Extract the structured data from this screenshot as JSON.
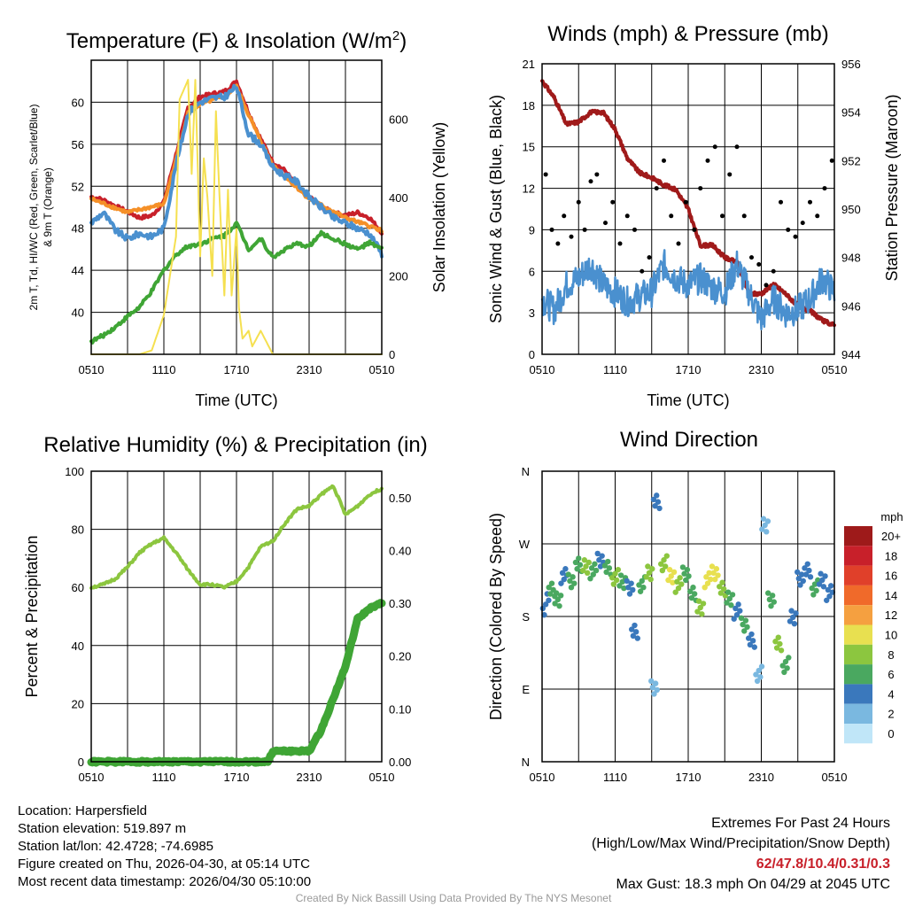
{
  "colors": {
    "red": "#c8202a",
    "orange": "#f59028",
    "green": "#3fa535",
    "blue": "#4a90cf",
    "yellow": "#f5e050",
    "black": "#000000",
    "maroon": "#a01a1a",
    "lightgreen": "#8cc63f"
  },
  "chart_data": [
    {
      "type": "line",
      "title": "Temperature (F) & Insolation (W/m²)",
      "xlabel": "Time (UTC)",
      "ylabel_lines": [
        "2m T, Td, HI/WC (Red, Green, Scarlet/Blue)",
        "& 9m T (Orange)"
      ],
      "ylabel2": "Solar Insolation (Yellow)",
      "x_ticks": [
        "0510",
        "1110",
        "1710",
        "2310",
        "0510"
      ],
      "y_ticks": [
        40,
        44,
        48,
        52,
        56,
        60
      ],
      "y2_ticks": [
        0,
        200,
        400,
        600
      ],
      "ylim": [
        36,
        64
      ],
      "y2lim": [
        0,
        750
      ],
      "xlim": [
        0,
        24
      ],
      "series": [
        {
          "name": "2m T",
          "color": "red",
          "x": [
            0,
            1,
            2,
            3,
            4,
            5,
            6,
            7,
            8,
            9,
            10,
            11,
            12,
            13,
            14,
            15,
            16,
            17,
            18,
            19,
            20,
            21,
            22,
            23,
            24
          ],
          "values": [
            51,
            50.7,
            50.1,
            49.6,
            49,
            49.2,
            50.5,
            55,
            59.5,
            60.5,
            60.8,
            61,
            62,
            59,
            56.5,
            54.3,
            53.5,
            52,
            51,
            50,
            49.5,
            49.2,
            49.5,
            49,
            47.6
          ]
        },
        {
          "name": "9m T",
          "color": "orange",
          "x": [
            0,
            3,
            6,
            7,
            8,
            9,
            10,
            11,
            12,
            13,
            14,
            15,
            18,
            21,
            24
          ],
          "values": [
            50.8,
            49.5,
            50.3,
            54.5,
            59,
            59.8,
            60.2,
            60.5,
            61.5,
            58.8,
            56.3,
            54,
            50.8,
            49,
            47.8
          ]
        },
        {
          "name": "HI/WC",
          "color": "blue",
          "x": [
            0,
            1,
            2,
            3,
            4,
            5,
            6,
            7,
            8,
            9,
            10,
            11,
            12,
            13,
            14,
            15,
            16,
            17,
            18,
            19,
            20,
            21,
            22,
            23,
            24
          ],
          "values": [
            48.5,
            49.5,
            47.8,
            47,
            47.5,
            47.2,
            48,
            54,
            59,
            60,
            60.4,
            60.5,
            61.5,
            57,
            56,
            53.8,
            53,
            52.4,
            51,
            50,
            49,
            48.5,
            48,
            47.5,
            45.6
          ]
        },
        {
          "name": "2m Td",
          "color": "green",
          "x": [
            0,
            1,
            2,
            3,
            4,
            5,
            6,
            7,
            8,
            9,
            10,
            11,
            12,
            13,
            14,
            15,
            16,
            17,
            18,
            19,
            20,
            21,
            22,
            23,
            24
          ],
          "values": [
            37.2,
            37.8,
            38.6,
            39.6,
            40.5,
            42,
            44,
            45.5,
            46.3,
            46.5,
            47,
            47.3,
            48.5,
            46,
            47,
            45.2,
            46,
            46.5,
            46.3,
            47.5,
            47,
            46.5,
            46,
            46.6,
            46
          ]
        },
        {
          "name": "Solar Insolation",
          "color": "yellow",
          "axis": "y2",
          "x": [
            0,
            4,
            5,
            6,
            7,
            7.3,
            8,
            8.3,
            8.6,
            9,
            9.3,
            9.6,
            10,
            10.3,
            10.6,
            11,
            11.3,
            11.6,
            12,
            12.2,
            12.5,
            13,
            13.3,
            14,
            15,
            24
          ],
          "values": [
            0,
            0,
            10,
            100,
            300,
            650,
            700,
            460,
            700,
            250,
            500,
            400,
            200,
            620,
            400,
            150,
            420,
            150,
            320,
            120,
            40,
            60,
            20,
            60,
            0,
            0
          ]
        }
      ]
    },
    {
      "type": "line",
      "title": "Winds (mph) & Pressure (mb)",
      "xlabel": "Time (UTC)",
      "ylabel": "Sonic Wind & Gust (Blue, Black)",
      "ylabel2": "Station Pressure (Maroon)",
      "x_ticks": [
        "0510",
        "1110",
        "1710",
        "2310",
        "0510"
      ],
      "y_ticks": [
        0,
        3,
        6,
        9,
        12,
        15,
        18,
        21
      ],
      "y2_ticks": [
        944,
        946,
        948,
        950,
        952,
        954,
        956
      ],
      "ylim": [
        0,
        21
      ],
      "y2lim": [
        944,
        956
      ],
      "xlim": [
        0,
        24
      ],
      "series": [
        {
          "name": "Station Pressure",
          "color": "maroon",
          "axis": "y2",
          "x": [
            0,
            1,
            2,
            3,
            4,
            5,
            6,
            7,
            8,
            9,
            10,
            11,
            12,
            13,
            14,
            15,
            16,
            17,
            18,
            19,
            20,
            21,
            22,
            23,
            24
          ],
          "values": [
            955.3,
            954.6,
            953.5,
            953.6,
            954,
            954,
            953.3,
            952.1,
            951.5,
            951.3,
            951,
            950.8,
            950,
            948.5,
            948.5,
            948,
            947.8,
            946.5,
            946.5,
            946.9,
            946.5,
            946,
            945.8,
            945.4,
            945.2
          ]
        },
        {
          "name": "Sonic Wind",
          "color": "blue",
          "x": [
            0,
            1,
            2,
            3,
            4,
            5,
            6,
            7,
            8,
            9,
            10,
            11,
            12,
            13,
            14,
            15,
            16,
            17,
            18,
            19,
            20,
            21,
            22,
            23,
            24
          ],
          "values": [
            4,
            3.2,
            5,
            5.5,
            6.5,
            5,
            4.5,
            3.8,
            4.2,
            4.5,
            6.5,
            5.5,
            5,
            5.5,
            4.8,
            4.5,
            6.5,
            4.5,
            2.5,
            4,
            3,
            3.2,
            4,
            5.5,
            4.5
          ]
        },
        {
          "name": "Gust",
          "color": "black",
          "type": "scatter",
          "x": [
            0.3,
            0.8,
            1.3,
            1.8,
            2.4,
            3,
            3.5,
            4,
            4.5,
            5.2,
            5.8,
            6.4,
            7,
            7.6,
            8.2,
            8.8,
            9.4,
            10,
            10.6,
            11.2,
            11.8,
            12.5,
            13,
            13.6,
            14.2,
            14.8,
            15.4,
            16,
            16.6,
            17.2,
            17.8,
            18.4,
            19,
            19.6,
            20.2,
            20.8,
            21.4,
            22,
            22.6,
            23.2,
            23.8
          ],
          "values": [
            13,
            9,
            8,
            10,
            8.5,
            11,
            9,
            12.5,
            13,
            9.5,
            11,
            8,
            10,
            9,
            6,
            7,
            12,
            14,
            10,
            8,
            11,
            9,
            12,
            14,
            15,
            10,
            13,
            15,
            10,
            7,
            6.5,
            5,
            6,
            11,
            9,
            8.5,
            9.5,
            11,
            10,
            12,
            14
          ]
        }
      ]
    },
    {
      "type": "line",
      "title": "Relative Humidity (%) & Precipitation (in)",
      "ylabel": "Percent & Precipitation",
      "x_ticks": [
        "0510",
        "1110",
        "1710",
        "2310",
        "0510"
      ],
      "y_ticks": [
        0,
        20,
        40,
        60,
        80,
        100
      ],
      "y2_ticks": [
        "0.00",
        "0.10",
        "0.20",
        "0.30",
        "0.40",
        "0.50"
      ],
      "ylim": [
        0,
        100
      ],
      "y2lim": [
        0,
        0.55
      ],
      "xlim": [
        0,
        24
      ],
      "series": [
        {
          "name": "Relative Humidity",
          "color": "lightgreen",
          "x": [
            0,
            1,
            2,
            3,
            4,
            5,
            6,
            7,
            8,
            9,
            10,
            11,
            12,
            13,
            14,
            15,
            16,
            17,
            18,
            19,
            20,
            21,
            22,
            23,
            24
          ],
          "values": [
            60,
            61,
            63,
            67,
            72,
            75,
            77,
            72,
            66,
            61,
            61,
            60,
            62,
            67,
            74,
            76,
            82,
            87,
            88,
            92,
            95,
            85,
            88,
            92,
            94
          ]
        },
        {
          "name": "Precipitation",
          "color": "green",
          "axis": "y2",
          "x": [
            0,
            14.6,
            15,
            17,
            18,
            19,
            20,
            21,
            22,
            23,
            24
          ],
          "values": [
            0,
            0,
            0.02,
            0.02,
            0.02,
            0.06,
            0.12,
            0.18,
            0.27,
            0.29,
            0.3
          ]
        }
      ]
    },
    {
      "type": "scatter",
      "title": "Wind Direction",
      "ylabel": "Direction (Colored By Speed)",
      "x_ticks": [
        "0510",
        "1110",
        "1710",
        "2310",
        "0510"
      ],
      "y_ticks": [
        "N",
        "E",
        "S",
        "W",
        "N"
      ],
      "ylim": [
        0,
        360
      ],
      "xlim": [
        0,
        24
      ],
      "legend": {
        "unit": "mph",
        "labels": [
          "20+",
          "18",
          "16",
          "14",
          "12",
          "10",
          "8",
          "6",
          "4",
          "2",
          "0"
        ],
        "colors": [
          "#9e1a1a",
          "#c8202a",
          "#e0402a",
          "#f06a2a",
          "#f5a040",
          "#e8e050",
          "#8cc63f",
          "#4aa860",
          "#3a78bc",
          "#7ab8e0",
          "#c0e6f8"
        ]
      },
      "points": [
        {
          "x": 0.3,
          "dir": 205,
          "spd": 4
        },
        {
          "x": 0.8,
          "dir": 215,
          "spd": 6
        },
        {
          "x": 1.3,
          "dir": 200,
          "spd": 5
        },
        {
          "x": 1.8,
          "dir": 230,
          "spd": 4
        },
        {
          "x": 2.4,
          "dir": 225,
          "spd": 5
        },
        {
          "x": 3,
          "dir": 245,
          "spd": 6
        },
        {
          "x": 3.6,
          "dir": 240,
          "spd": 8
        },
        {
          "x": 4.2,
          "dir": 235,
          "spd": 5
        },
        {
          "x": 4.8,
          "dir": 250,
          "spd": 4
        },
        {
          "x": 5.4,
          "dir": 240,
          "spd": 6
        },
        {
          "x": 6,
          "dir": 230,
          "spd": 7
        },
        {
          "x": 6.6,
          "dir": 225,
          "spd": 5
        },
        {
          "x": 7.2,
          "dir": 215,
          "spd": 4
        },
        {
          "x": 7.6,
          "dir": 160,
          "spd": 3
        },
        {
          "x": 8.2,
          "dir": 220,
          "spd": 6
        },
        {
          "x": 8.8,
          "dir": 235,
          "spd": 8
        },
        {
          "x": 9.2,
          "dir": 90,
          "spd": 2
        },
        {
          "x": 9.4,
          "dir": 320,
          "spd": 3
        },
        {
          "x": 10,
          "dir": 245,
          "spd": 7
        },
        {
          "x": 10.6,
          "dir": 230,
          "spd": 9
        },
        {
          "x": 11.2,
          "dir": 220,
          "spd": 8
        },
        {
          "x": 11.8,
          "dir": 235,
          "spd": 5
        },
        {
          "x": 12.4,
          "dir": 210,
          "spd": 6
        },
        {
          "x": 13,
          "dir": 190,
          "spd": 7
        },
        {
          "x": 13.6,
          "dir": 225,
          "spd": 9
        },
        {
          "x": 14.2,
          "dir": 235,
          "spd": 10
        },
        {
          "x": 14.8,
          "dir": 215,
          "spd": 7
        },
        {
          "x": 15.4,
          "dir": 200,
          "spd": 5
        },
        {
          "x": 16,
          "dir": 185,
          "spd": 4
        },
        {
          "x": 16.6,
          "dir": 170,
          "spd": 6
        },
        {
          "x": 17.2,
          "dir": 150,
          "spd": 3
        },
        {
          "x": 17.8,
          "dir": 110,
          "spd": 2
        },
        {
          "x": 18.3,
          "dir": 295,
          "spd": 2
        },
        {
          "x": 18.8,
          "dir": 200,
          "spd": 6
        },
        {
          "x": 19.4,
          "dir": 145,
          "spd": 7
        },
        {
          "x": 20,
          "dir": 120,
          "spd": 5
        },
        {
          "x": 20.6,
          "dir": 180,
          "spd": 4
        },
        {
          "x": 21.2,
          "dir": 225,
          "spd": 4
        },
        {
          "x": 21.8,
          "dir": 235,
          "spd": 3
        },
        {
          "x": 22.4,
          "dir": 215,
          "spd": 5
        },
        {
          "x": 23,
          "dir": 225,
          "spd": 4
        },
        {
          "x": 23.6,
          "dir": 210,
          "spd": 3
        }
      ]
    }
  ],
  "station": {
    "location": "Location: Harpersfield",
    "elevation": "Station elevation: 519.897 m",
    "latlon": "Station lat/lon: 42.4728; -74.6985",
    "created": "Figure created on Thu, 2026-04-30, at 05:14 UTC",
    "recent": "Most recent data timestamp: 2026/04/30 05:10:00"
  },
  "extremes": {
    "title": "Extremes For Past 24 Hours",
    "subtitle": "(High/Low/Max Wind/Precipitation/Snow Depth)",
    "values": "62/47.8/10.4/0.31/0.3",
    "gust": "Max Gust: 18.3 mph On 04/29 at 2045 UTC"
  },
  "credit": "Created By Nick Bassill Using Data Provided By The NYS Mesonet"
}
